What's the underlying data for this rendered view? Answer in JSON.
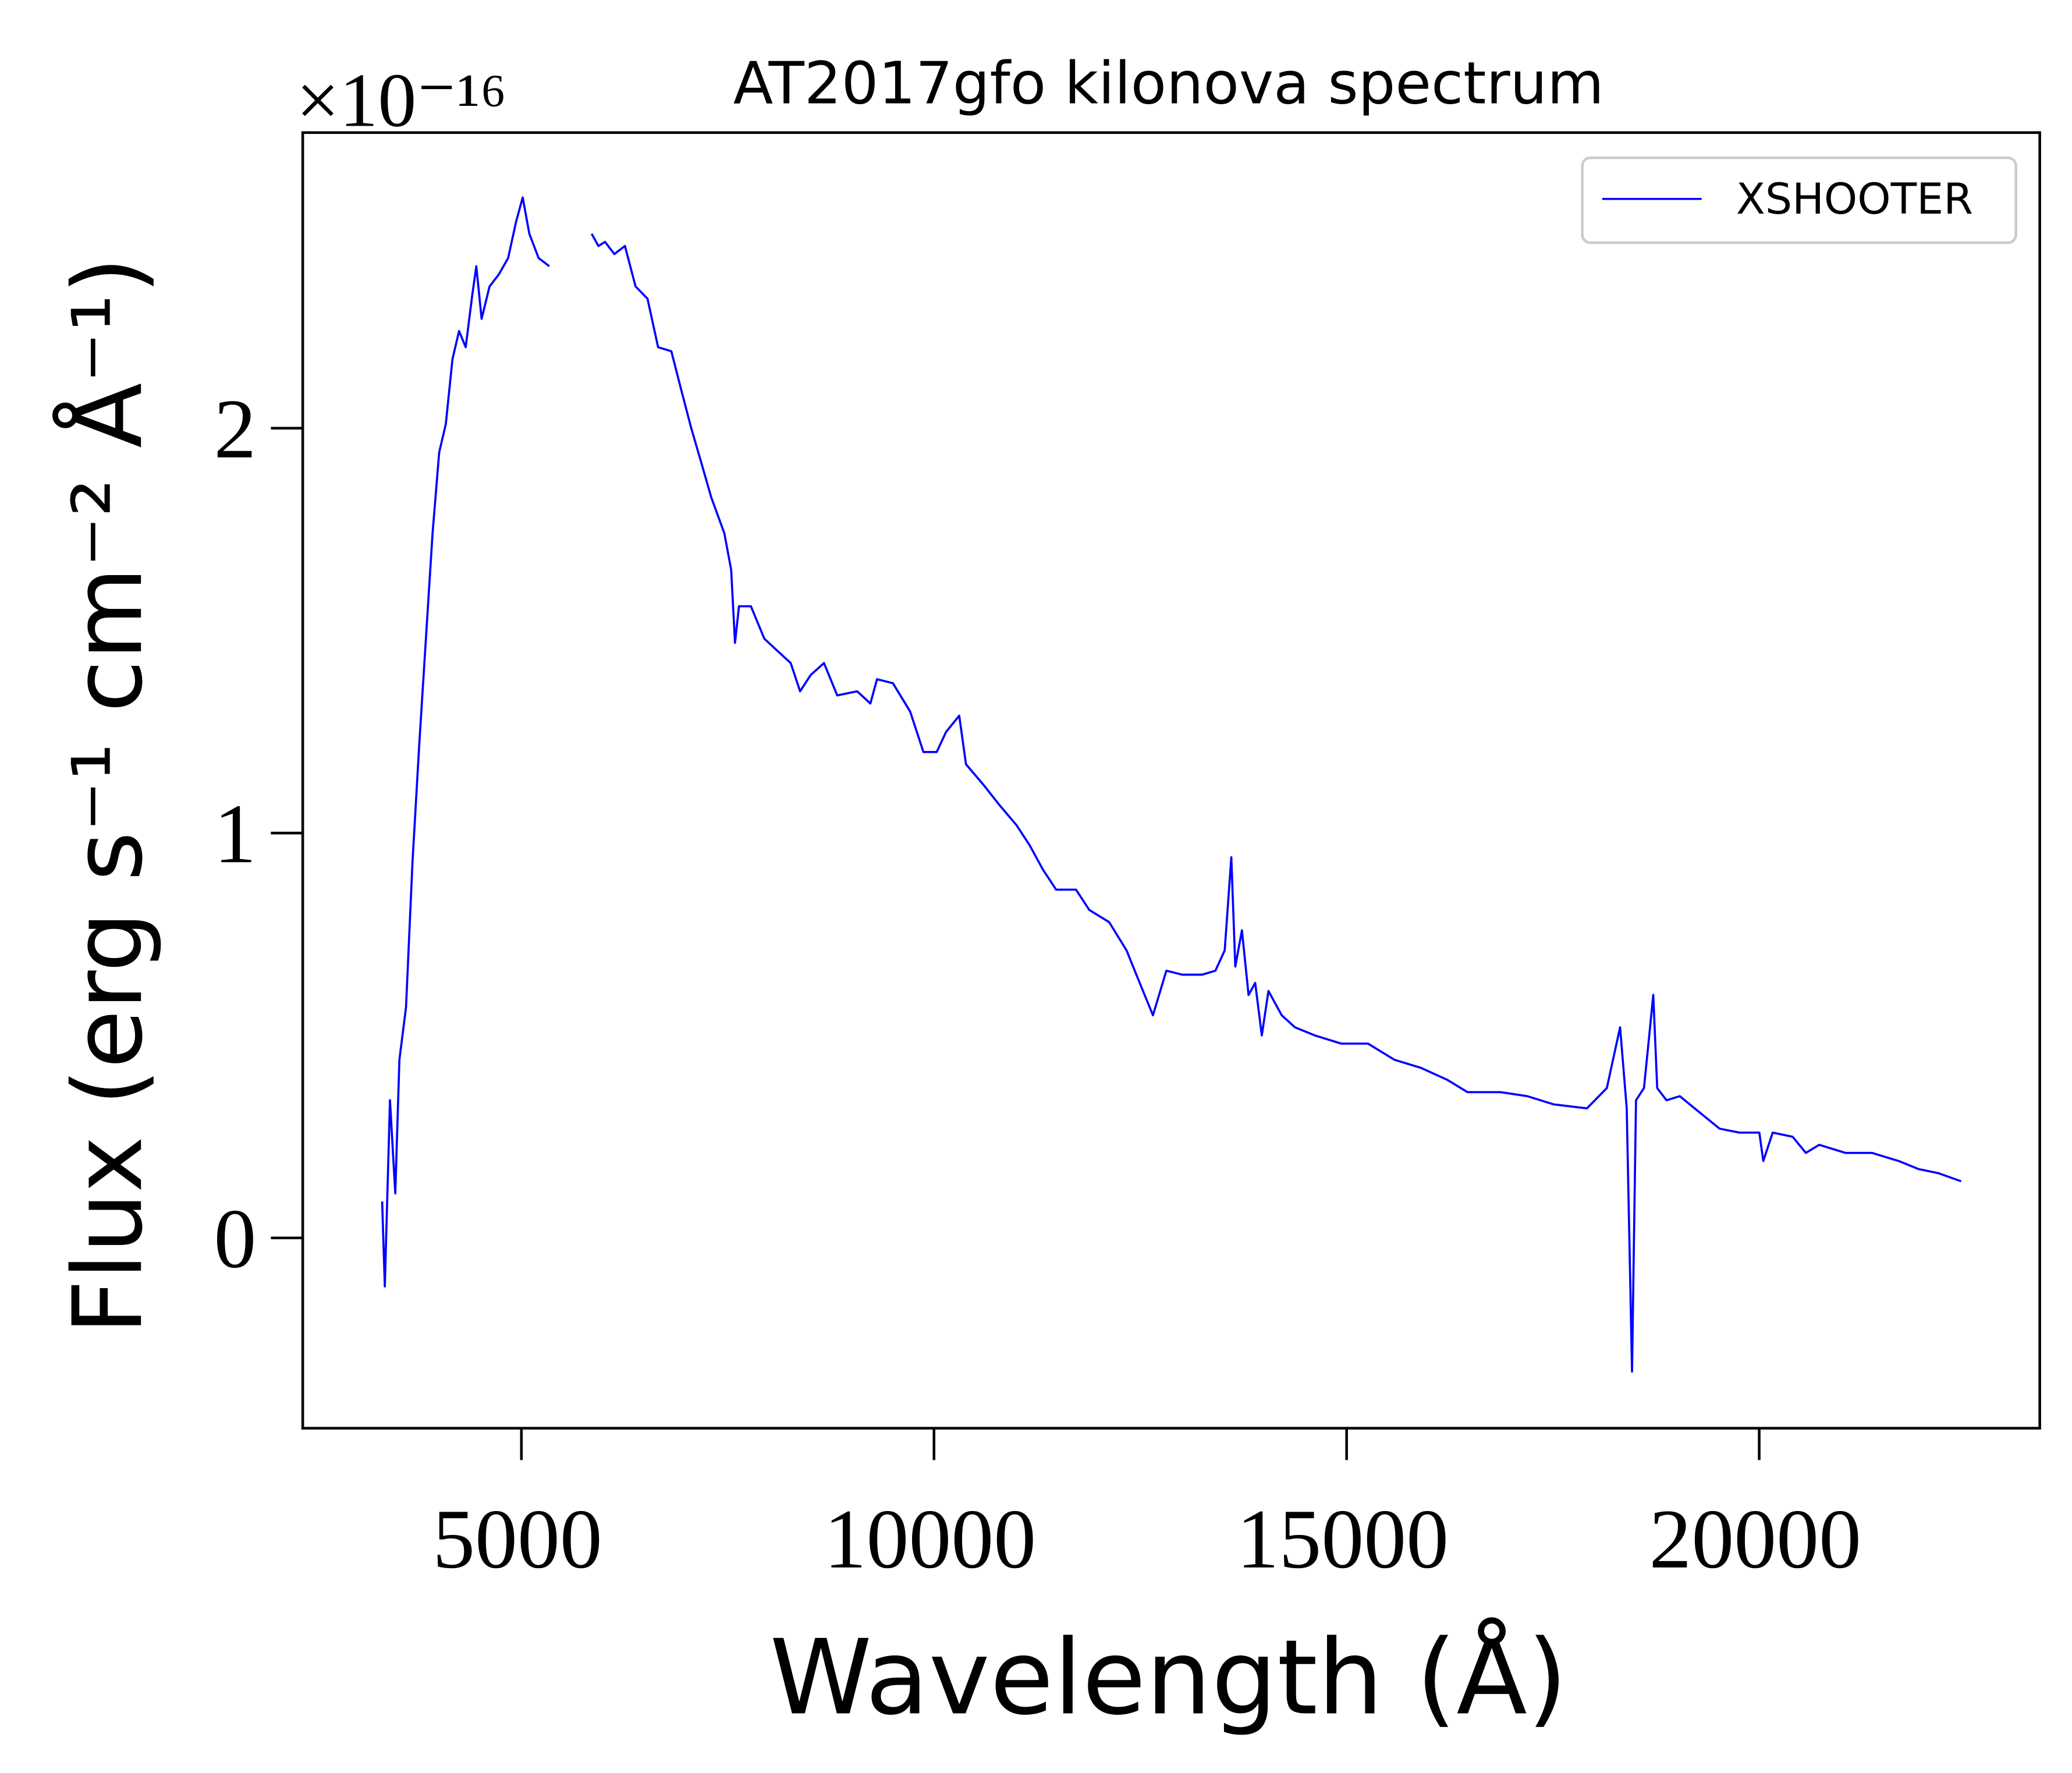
{
  "chart_data": {
    "type": "line",
    "title": "AT2017gfo kilonova spectrum",
    "xlabel": "Wavelength (Å)",
    "ylabel": "Flux (erg s⁻¹ cm⁻² Å⁻¹)",
    "y_scale_label": "×10⁻¹⁶",
    "xlim": [
      2350,
      23400
    ],
    "ylim": [
      -0.47,
      2.73
    ],
    "xticks": [
      5000,
      10000,
      15000,
      20000
    ],
    "yticks": [
      0,
      1,
      2
    ],
    "xtick_labels": [
      "5000",
      "10000",
      "15000",
      "20000"
    ],
    "ytick_labels": [
      "0",
      "1",
      "2"
    ],
    "grid": false,
    "legend_placement": "top-right",
    "series": [
      {
        "name": "XSHOOTER",
        "color": "#0000ff",
        "segments": [
          [
            [
              3312,
              0.09
            ],
            [
              3344,
              -0.12
            ],
            [
              3408,
              0.34
            ],
            [
              3472,
              0.11
            ],
            [
              3521,
              0.44
            ],
            [
              3601,
              0.57
            ],
            [
              3681,
              0.93
            ],
            [
              3762,
              1.22
            ],
            [
              3842,
              1.48
            ],
            [
              3923,
              1.74
            ],
            [
              4003,
              1.94
            ],
            [
              4084,
              2.01
            ],
            [
              4164,
              2.17
            ],
            [
              4244,
              2.24
            ],
            [
              4325,
              2.2
            ],
            [
              4405,
              2.33
            ],
            [
              4453,
              2.4
            ],
            [
              4518,
              2.27
            ],
            [
              4614,
              2.35
            ],
            [
              4727,
              2.38
            ],
            [
              4839,
              2.42
            ],
            [
              4936,
              2.51
            ],
            [
              5016,
              2.57
            ],
            [
              5096,
              2.48
            ],
            [
              5209,
              2.42
            ],
            [
              5338,
              2.4
            ]
          ],
          [
            [
              5852,
              2.48
            ],
            [
              5933,
              2.45
            ],
            [
              6013,
              2.46
            ],
            [
              6126,
              2.43
            ],
            [
              6254,
              2.45
            ],
            [
              6383,
              2.35
            ],
            [
              6528,
              2.32
            ],
            [
              6656,
              2.2
            ],
            [
              6817,
              2.19
            ],
            [
              6930,
              2.1
            ],
            [
              7058,
              2.0
            ],
            [
              7187,
              1.91
            ],
            [
              7299,
              1.83
            ],
            [
              7460,
              1.74
            ],
            [
              7541,
              1.65
            ],
            [
              7589,
              1.47
            ],
            [
              7637,
              1.56
            ],
            [
              7782,
              1.56
            ],
            [
              7943,
              1.48
            ],
            [
              8103,
              1.45
            ],
            [
              8264,
              1.42
            ],
            [
              8377,
              1.35
            ],
            [
              8505,
              1.39
            ],
            [
              8666,
              1.42
            ],
            [
              8827,
              1.34
            ],
            [
              9068,
              1.35
            ],
            [
              9229,
              1.32
            ],
            [
              9309,
              1.38
            ],
            [
              9502,
              1.37
            ],
            [
              9711,
              1.3
            ],
            [
              9872,
              1.2
            ],
            [
              10033,
              1.2
            ],
            [
              10146,
              1.25
            ],
            [
              10306,
              1.29
            ],
            [
              10387,
              1.17
            ],
            [
              10596,
              1.12
            ],
            [
              10789,
              1.07
            ],
            [
              10998,
              1.02
            ],
            [
              11159,
              0.97
            ],
            [
              11319,
              0.91
            ],
            [
              11480,
              0.86
            ],
            [
              11721,
              0.86
            ],
            [
              11882,
              0.81
            ],
            [
              12123,
              0.78
            ],
            [
              12333,
              0.71
            ],
            [
              12493,
              0.63
            ],
            [
              12654,
              0.55
            ],
            [
              12815,
              0.66
            ],
            [
              13008,
              0.65
            ],
            [
              13249,
              0.65
            ],
            [
              13410,
              0.66
            ],
            [
              13522,
              0.71
            ],
            [
              13603,
              0.94
            ],
            [
              13651,
              0.67
            ],
            [
              13731,
              0.76
            ],
            [
              13812,
              0.6
            ],
            [
              13892,
              0.63
            ],
            [
              13972,
              0.5
            ],
            [
              14053,
              0.61
            ],
            [
              14214,
              0.55
            ],
            [
              14375,
              0.52
            ],
            [
              14616,
              0.5
            ],
            [
              14937,
              0.48
            ],
            [
              15259,
              0.48
            ],
            [
              15581,
              0.44
            ],
            [
              15902,
              0.42
            ],
            [
              16224,
              0.39
            ],
            [
              16465,
              0.36
            ],
            [
              16867,
              0.36
            ],
            [
              17189,
              0.35
            ],
            [
              17510,
              0.33
            ],
            [
              17912,
              0.32
            ],
            [
              18153,
              0.37
            ],
            [
              18314,
              0.52
            ],
            [
              18394,
              0.32
            ],
            [
              18459,
              -0.33
            ],
            [
              18507,
              0.34
            ],
            [
              18603,
              0.37
            ],
            [
              18668,
              0.5
            ],
            [
              18716,
              0.6
            ],
            [
              18764,
              0.37
            ],
            [
              18877,
              0.34
            ],
            [
              19038,
              0.35
            ],
            [
              19279,
              0.31
            ],
            [
              19520,
              0.27
            ],
            [
              19761,
              0.26
            ],
            [
              20002,
              0.26
            ],
            [
              20050,
              0.19
            ],
            [
              20163,
              0.26
            ],
            [
              20404,
              0.25
            ],
            [
              20565,
              0.21
            ],
            [
              20726,
              0.23
            ],
            [
              21048,
              0.21
            ],
            [
              21369,
              0.21
            ],
            [
              21691,
              0.19
            ],
            [
              21932,
              0.17
            ],
            [
              22173,
              0.16
            ],
            [
              22447,
              0.14
            ]
          ]
        ]
      }
    ]
  }
}
